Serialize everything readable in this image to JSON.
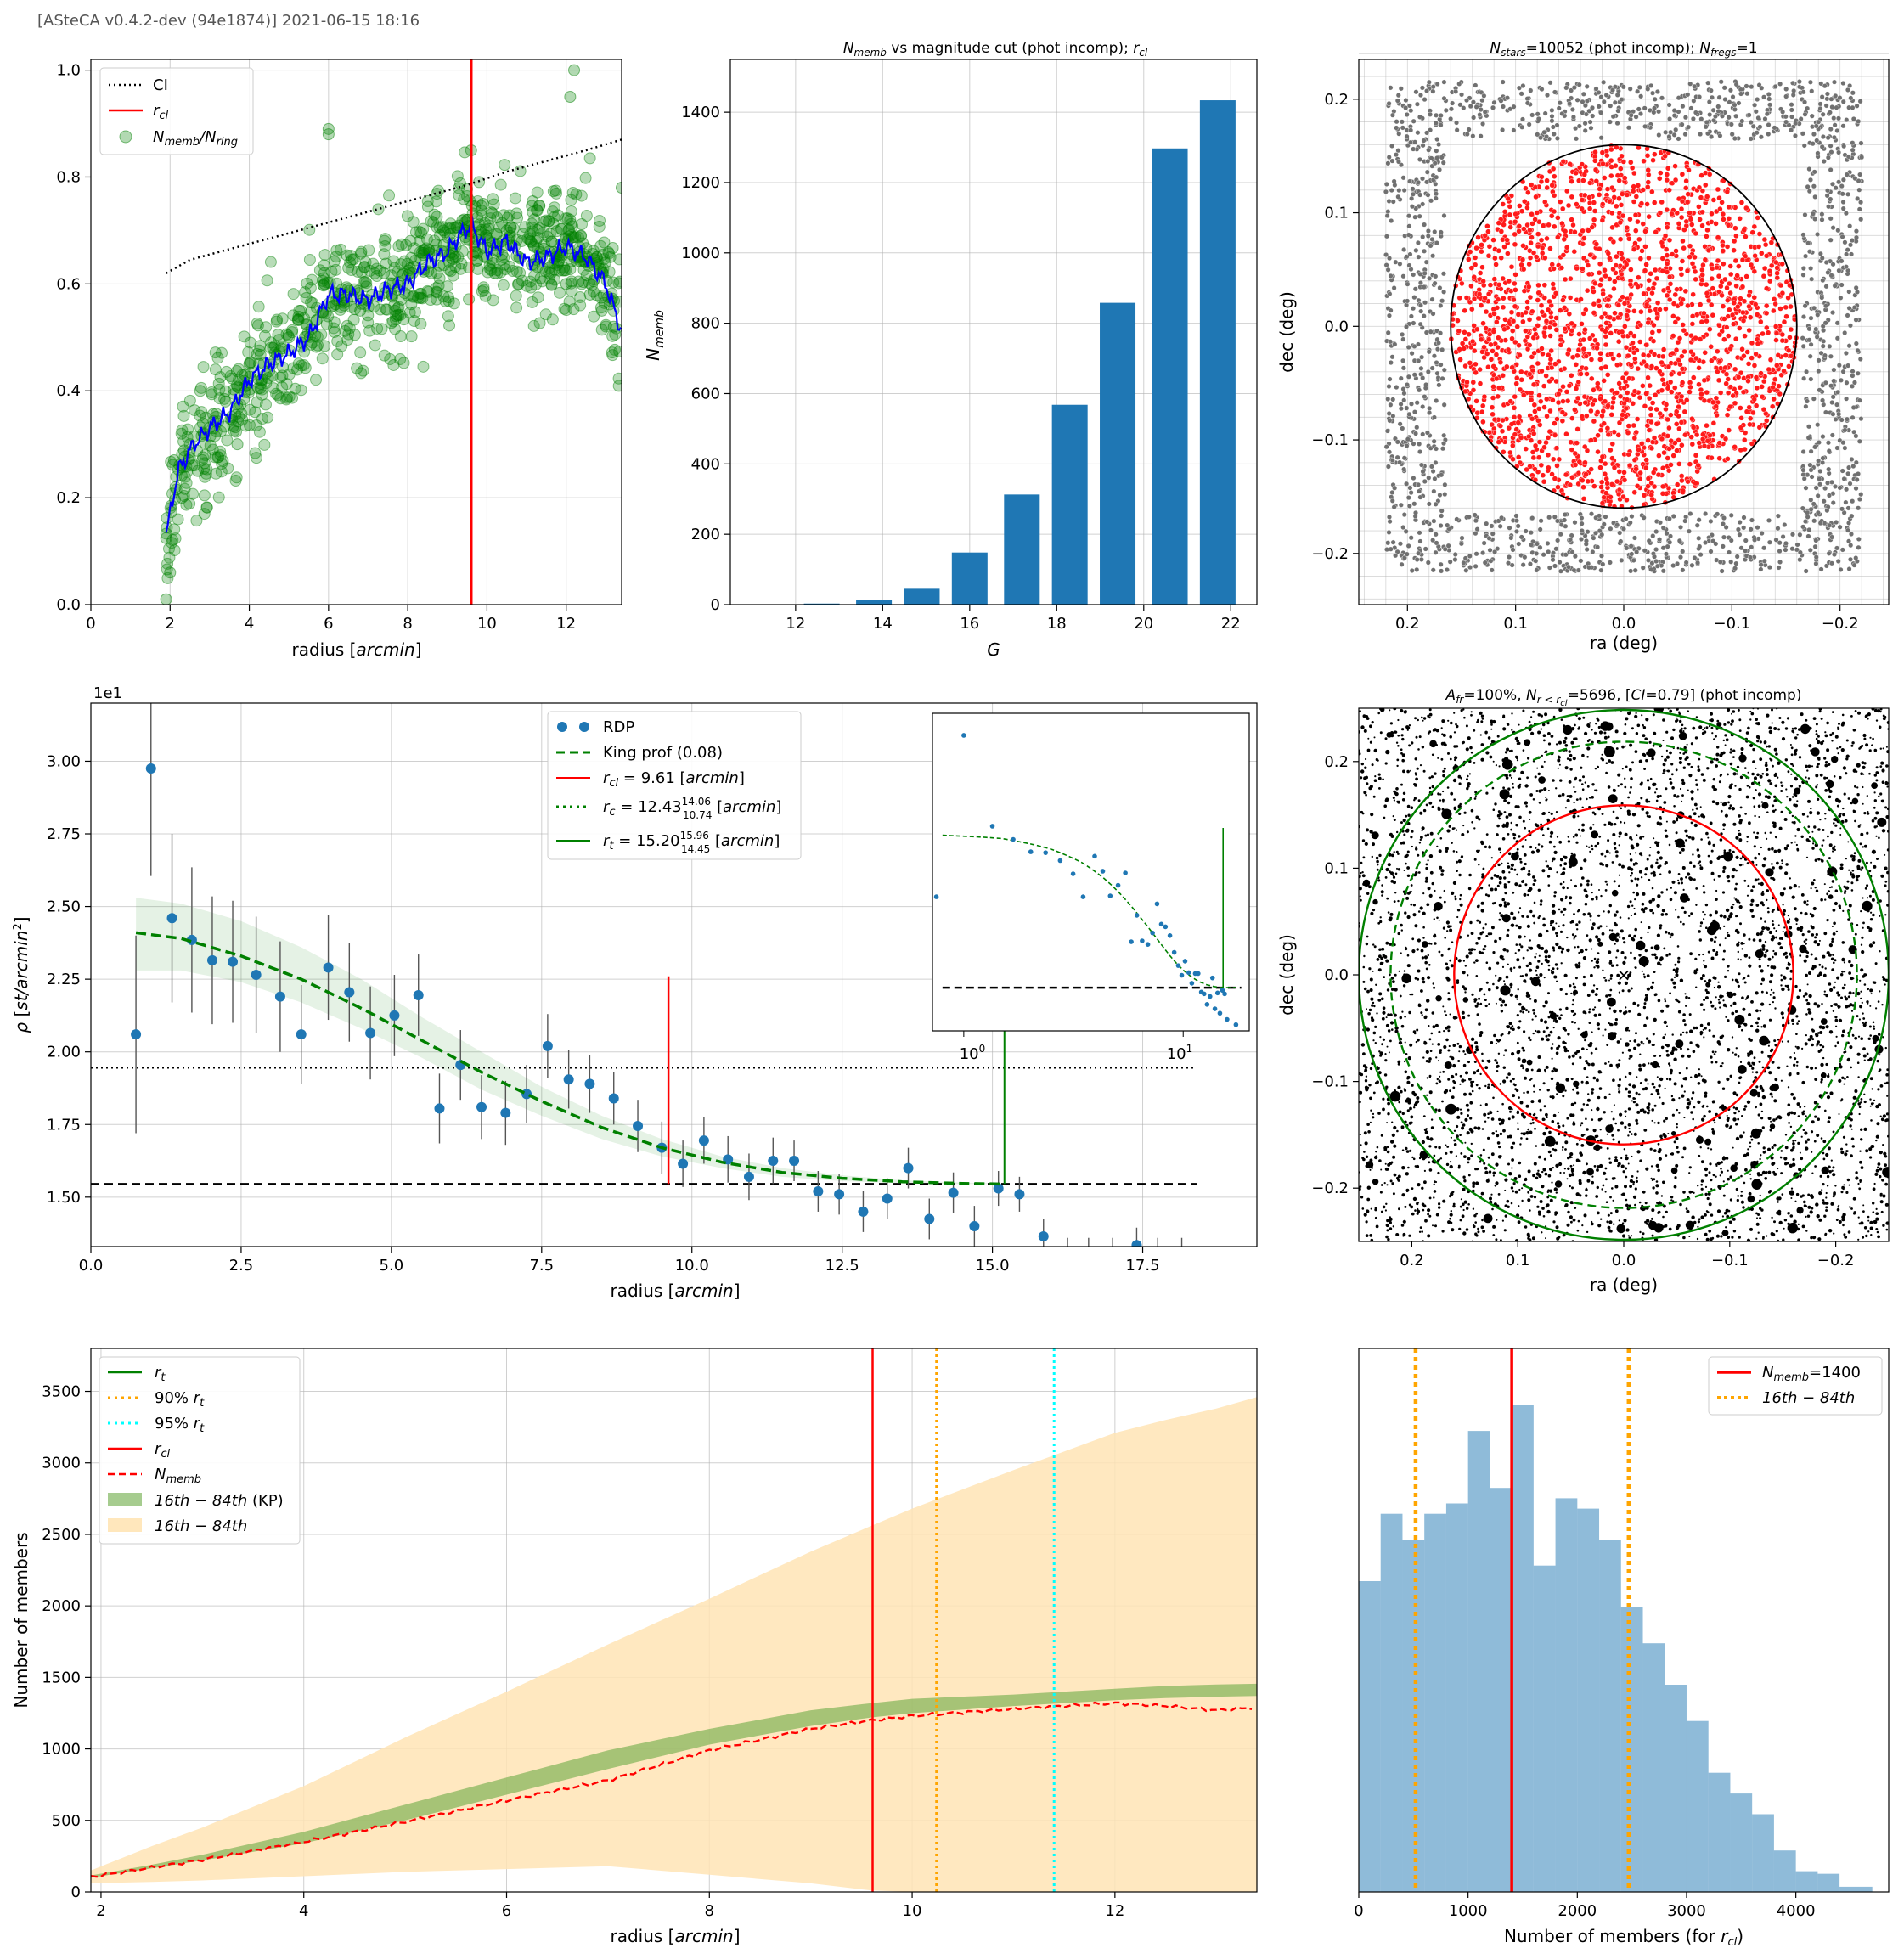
{
  "header": "[ASteCA v0.4.2-dev (94e1874)] 2021-06-15 18:16",
  "chart_data": [
    {
      "id": "ci_vs_radius",
      "type": "scatter",
      "title": "",
      "xlabel": "radius [arcmin]",
      "ylabel": "",
      "xlim": [
        0,
        13.4
      ],
      "ylim": [
        0.0,
        1.02
      ],
      "xticks": [
        0,
        2,
        4,
        6,
        8,
        10,
        12
      ],
      "yticks": [
        0.0,
        0.2,
        0.4,
        0.6,
        0.8,
        1.0
      ],
      "grid": true,
      "legend_position": "upper-left",
      "legend": [
        "CI",
        "r_cl",
        "N_memb/N_ring"
      ],
      "vline_rcl": 9.61,
      "ci_line": {
        "x": [
          1.9,
          2.5,
          3.5,
          4.5,
          5.5,
          6.5,
          7.5,
          8.5,
          9.5,
          10.5,
          11.5,
          12.5,
          13.4
        ],
        "y": [
          0.62,
          0.645,
          0.665,
          0.685,
          0.705,
          0.725,
          0.745,
          0.765,
          0.785,
          0.81,
          0.83,
          0.85,
          0.87
        ]
      },
      "smooth_line": {
        "x": [
          1.9,
          2.2,
          2.6,
          3.0,
          3.5,
          4.0,
          4.5,
          5.0,
          5.5,
          6.0,
          6.5,
          7.0,
          7.5,
          8.0,
          8.5,
          9.0,
          9.3,
          9.6,
          10.0,
          10.5,
          11.0,
          11.5,
          12.0,
          12.5,
          13.0,
          13.4
        ],
        "y": [
          0.13,
          0.25,
          0.3,
          0.33,
          0.36,
          0.42,
          0.45,
          0.47,
          0.5,
          0.58,
          0.58,
          0.57,
          0.59,
          0.6,
          0.64,
          0.66,
          0.69,
          0.71,
          0.66,
          0.68,
          0.64,
          0.65,
          0.67,
          0.65,
          0.6,
          0.51
        ]
      },
      "points": {
        "x": [
          1.9,
          2.0,
          2.1,
          2.3,
          2.5,
          2.7,
          2.9,
          3.1,
          3.4,
          3.7,
          4.0,
          4.3,
          4.6,
          5.0,
          5.3,
          5.6,
          5.9,
          6.0,
          6.2,
          6.5,
          6.8,
          7.1,
          7.4,
          7.7,
          8.0,
          8.3,
          8.6,
          8.9,
          9.2,
          9.5,
          9.7,
          9.9,
          10.2,
          10.5,
          10.8,
          11.1,
          11.4,
          11.7,
          12.0,
          12.3,
          12.6,
          12.9,
          13.2,
          13.4,
          12.2,
          12.1,
          9.6,
          6.0
        ],
        "y": [
          0.01,
          0.06,
          0.27,
          0.2,
          0.3,
          0.25,
          0.35,
          0.33,
          0.38,
          0.3,
          0.45,
          0.42,
          0.48,
          0.5,
          0.55,
          0.49,
          0.6,
          0.88,
          0.57,
          0.63,
          0.55,
          0.58,
          0.62,
          0.54,
          0.6,
          0.68,
          0.62,
          0.7,
          0.65,
          0.72,
          0.66,
          0.75,
          0.62,
          0.7,
          0.6,
          0.68,
          0.63,
          0.66,
          0.6,
          0.65,
          0.58,
          0.55,
          0.52,
          0.78,
          1.0,
          0.95,
          0.85,
          0.89
        ]
      }
    },
    {
      "id": "nmemb_vs_mag",
      "type": "bar",
      "title": "N_memb vs magnitude cut (phot incomp); r_cl",
      "xlabel": "G",
      "ylabel": "N_memb",
      "xlim": [
        10.5,
        22.6
      ],
      "ylim": [
        0,
        1550
      ],
      "xticks": [
        12,
        14,
        16,
        18,
        20,
        22
      ],
      "yticks": [
        0,
        200,
        400,
        600,
        800,
        1000,
        1200,
        1400
      ],
      "grid": true,
      "categories": [
        11.5,
        12.6,
        13.8,
        14.9,
        16.0,
        17.2,
        18.3,
        19.4,
        20.6,
        21.7
      ],
      "values": [
        1,
        3,
        14,
        45,
        148,
        313,
        568,
        858,
        1297,
        1434
      ]
    },
    {
      "id": "ra_dec_field",
      "type": "scatter",
      "title": "N_stars=10052 (phot incomp); N_fregs=1",
      "xlabel": "ra (deg)",
      "ylabel": "dec (deg)",
      "xlim": [
        0.245,
        -0.245
      ],
      "ylim": [
        -0.245,
        0.235
      ],
      "xticks": [
        0.2,
        0.1,
        0.0,
        -0.1,
        -0.2
      ],
      "yticks": [
        -0.2,
        -0.1,
        0.0,
        0.1,
        0.2
      ],
      "grid": true,
      "cluster_radius_deg": 0.16,
      "field_box": {
        "inner": 0.165,
        "outer": 0.22
      }
    },
    {
      "id": "rdp",
      "type": "scatter",
      "title": "",
      "xlabel": "radius [arcmin]",
      "ylabel": "ρ [st/arcmin²]",
      "y_multiplier": "1e1",
      "xlim": [
        0,
        19.4
      ],
      "ylim": [
        1.33,
        3.2
      ],
      "xticks": [
        0.0,
        2.5,
        5.0,
        7.5,
        10.0,
        12.5,
        15.0,
        17.5
      ],
      "yticks": [
        1.5,
        1.75,
        2.0,
        2.25,
        2.5,
        2.75,
        3.0
      ],
      "grid": true,
      "legend_position": "upper-center",
      "legend": [
        "RDP",
        "King prof (0.08)",
        "r_cl = 9.61 [arcmin]",
        "r_c = 12.43 (+14.06 / -10.74) [arcmin]",
        "r_t = 15.20 (+15.96 / -14.45) [arcmin]"
      ],
      "background": 1.545,
      "ci_level": 1.945,
      "r_cl": 9.61,
      "r_t": 15.2,
      "x": [
        0.75,
        1.0,
        1.35,
        1.68,
        2.02,
        2.36,
        2.75,
        3.15,
        3.5,
        3.95,
        4.3,
        4.65,
        5.05,
        5.45,
        5.8,
        6.15,
        6.5,
        6.9,
        7.25,
        7.6,
        7.95,
        8.3,
        8.7,
        9.1,
        9.5,
        9.85,
        10.2,
        10.6,
        10.95,
        11.35,
        11.7,
        12.1,
        12.45,
        12.85,
        13.25,
        13.6,
        13.95,
        14.35,
        14.7,
        15.1,
        15.45,
        15.85,
        16.25,
        16.6,
        17.0,
        17.4,
        17.75,
        18.15
      ],
      "y": [
        2.06,
        2.975,
        2.46,
        2.385,
        2.315,
        2.31,
        2.265,
        2.19,
        2.06,
        2.29,
        2.205,
        2.065,
        2.125,
        2.195,
        1.805,
        1.955,
        1.81,
        1.79,
        1.855,
        2.02,
        1.905,
        1.89,
        1.84,
        1.745,
        1.67,
        1.615,
        1.695,
        1.63,
        1.57,
        1.625,
        1.625,
        1.52,
        1.51,
        1.45,
        1.495,
        1.6,
        1.425,
        1.515,
        1.4,
        1.53,
        1.51,
        1.365,
        1.3,
        1.3,
        1.3,
        1.335,
        1.3,
        1.3
      ],
      "yerr": [
        0.34,
        0.37,
        0.29,
        0.25,
        0.22,
        0.21,
        0.2,
        0.19,
        0.17,
        0.18,
        0.17,
        0.16,
        0.14,
        0.14,
        0.12,
        0.12,
        0.11,
        0.11,
        0.1,
        0.11,
        0.1,
        0.1,
        0.09,
        0.09,
        0.09,
        0.08,
        0.08,
        0.08,
        0.08,
        0.08,
        0.07,
        0.07,
        0.07,
        0.07,
        0.07,
        0.07,
        0.07,
        0.07,
        0.07,
        0.06,
        0.06,
        0.06,
        0.06,
        0.06,
        0.06,
        0.06,
        0.06,
        0.06
      ],
      "king_x": [
        0.75,
        1.5,
        2.5,
        3.5,
        4.5,
        5.5,
        6.5,
        7.5,
        8.5,
        9.5,
        10.5,
        11.5,
        12.5,
        13.5,
        14.5,
        15.2
      ],
      "king_y": [
        2.41,
        2.39,
        2.33,
        2.25,
        2.15,
        2.04,
        1.93,
        1.83,
        1.74,
        1.67,
        1.62,
        1.585,
        1.565,
        1.553,
        1.547,
        1.545
      ],
      "king_band_upper": [
        2.53,
        2.51,
        2.45,
        2.36,
        2.25,
        2.12,
        2.0,
        1.88,
        1.78,
        1.7,
        1.64,
        1.6,
        1.575,
        1.558,
        1.55,
        1.547
      ],
      "king_band_lower": [
        2.28,
        2.28,
        2.24,
        2.17,
        2.08,
        1.98,
        1.87,
        1.78,
        1.7,
        1.64,
        1.6,
        1.57,
        1.555,
        1.548,
        1.545,
        1.545
      ],
      "inset": {
        "xscale": "log",
        "xticks": [
          "10^0",
          "10^1"
        ]
      }
    },
    {
      "id": "density_map",
      "type": "scatter",
      "title": "A_fr=100%, N_r<r_cl=5696, [CI=0.79] (phot incomp)",
      "xlabel": "ra (deg)",
      "ylabel": "dec (deg)",
      "xlim": [
        0.25,
        -0.25
      ],
      "ylim": [
        -0.25,
        0.25
      ],
      "xticks": [
        0.2,
        0.1,
        0.0,
        -0.1,
        -0.2
      ],
      "yticks": [
        -0.2,
        -0.1,
        0.0,
        0.1,
        0.2
      ],
      "grid": false,
      "circles": [
        {
          "r": 0.16,
          "color": "#ff0000",
          "style": "solid"
        },
        {
          "r": 0.22,
          "color": "#008000",
          "style": "dashed"
        },
        {
          "r": 0.25,
          "color": "#008000",
          "style": "solid"
        }
      ]
    },
    {
      "id": "members_vs_radius",
      "type": "area",
      "title": "",
      "xlabel": "radius [arcmin]",
      "ylabel": "Number of members",
      "xlim": [
        1.9,
        13.4
      ],
      "ylim": [
        0,
        3800
      ],
      "xticks": [
        2,
        4,
        6,
        8,
        10,
        12
      ],
      "yticks": [
        0,
        500,
        1000,
        1500,
        2000,
        2500,
        3000,
        3500
      ],
      "grid": true,
      "legend_position": "upper-left",
      "legend": [
        "r_t",
        "90% r_t",
        "95% r_t",
        "r_cl",
        "N_memb",
        "16th − 84th (KP)",
        "16th − 84th"
      ],
      "vlines": {
        "r_cl": 9.61,
        "r90": 10.24,
        "r95": 11.4
      },
      "x": [
        1.9,
        2.5,
        3.0,
        4.0,
        5.0,
        6.0,
        7.0,
        8.0,
        9.0,
        9.6,
        10.0,
        11.0,
        12.0,
        12.5,
        13.0,
        13.4
      ],
      "n_memb": [
        105,
        170,
        225,
        350,
        490,
        640,
        780,
        990,
        1140,
        1200,
        1230,
        1280,
        1320,
        1300,
        1270,
        1290
      ],
      "kp_upper": [
        115,
        190,
        260,
        420,
        610,
        800,
        990,
        1140,
        1270,
        1320,
        1350,
        1380,
        1420,
        1440,
        1450,
        1455
      ],
      "kp_lower": [
        100,
        165,
        220,
        340,
        500,
        680,
        860,
        1030,
        1160,
        1220,
        1250,
        1300,
        1340,
        1355,
        1365,
        1370
      ],
      "band_upper": [
        150,
        320,
        450,
        740,
        1080,
        1400,
        1730,
        2050,
        2380,
        2560,
        2680,
        2950,
        3210,
        3300,
        3380,
        3460
      ],
      "band_lower": [
        60,
        70,
        80,
        110,
        140,
        160,
        180,
        120,
        60,
        10,
        0,
        0,
        0,
        0,
        0,
        0
      ]
    },
    {
      "id": "nmemb_histogram",
      "type": "bar",
      "title": "",
      "xlabel": "Number of members (for r_cl)",
      "ylabel": "",
      "xlim": [
        0,
        4850
      ],
      "xticks": [
        0,
        1000,
        2000,
        3000,
        4000
      ],
      "grid": false,
      "legend_position": "upper-right",
      "legend": [
        "N_memb=1400",
        "16th − 84th"
      ],
      "n_memb": 1400,
      "p16": 520,
      "p84": 2470,
      "bin_edges": [
        0,
        200,
        400,
        600,
        800,
        1000,
        1200,
        1400,
        1600,
        1800,
        2000,
        2200,
        2400,
        2600,
        2800,
        3000,
        3200,
        3400,
        3600,
        3800,
        4000,
        4200,
        4400,
        4700
      ],
      "counts": [
        0.6,
        0.73,
        0.68,
        0.73,
        0.75,
        0.89,
        0.78,
        0.94,
        0.63,
        0.76,
        0.74,
        0.68,
        0.55,
        0.48,
        0.4,
        0.33,
        0.23,
        0.19,
        0.15,
        0.08,
        0.04,
        0.035,
        0.01
      ]
    }
  ]
}
